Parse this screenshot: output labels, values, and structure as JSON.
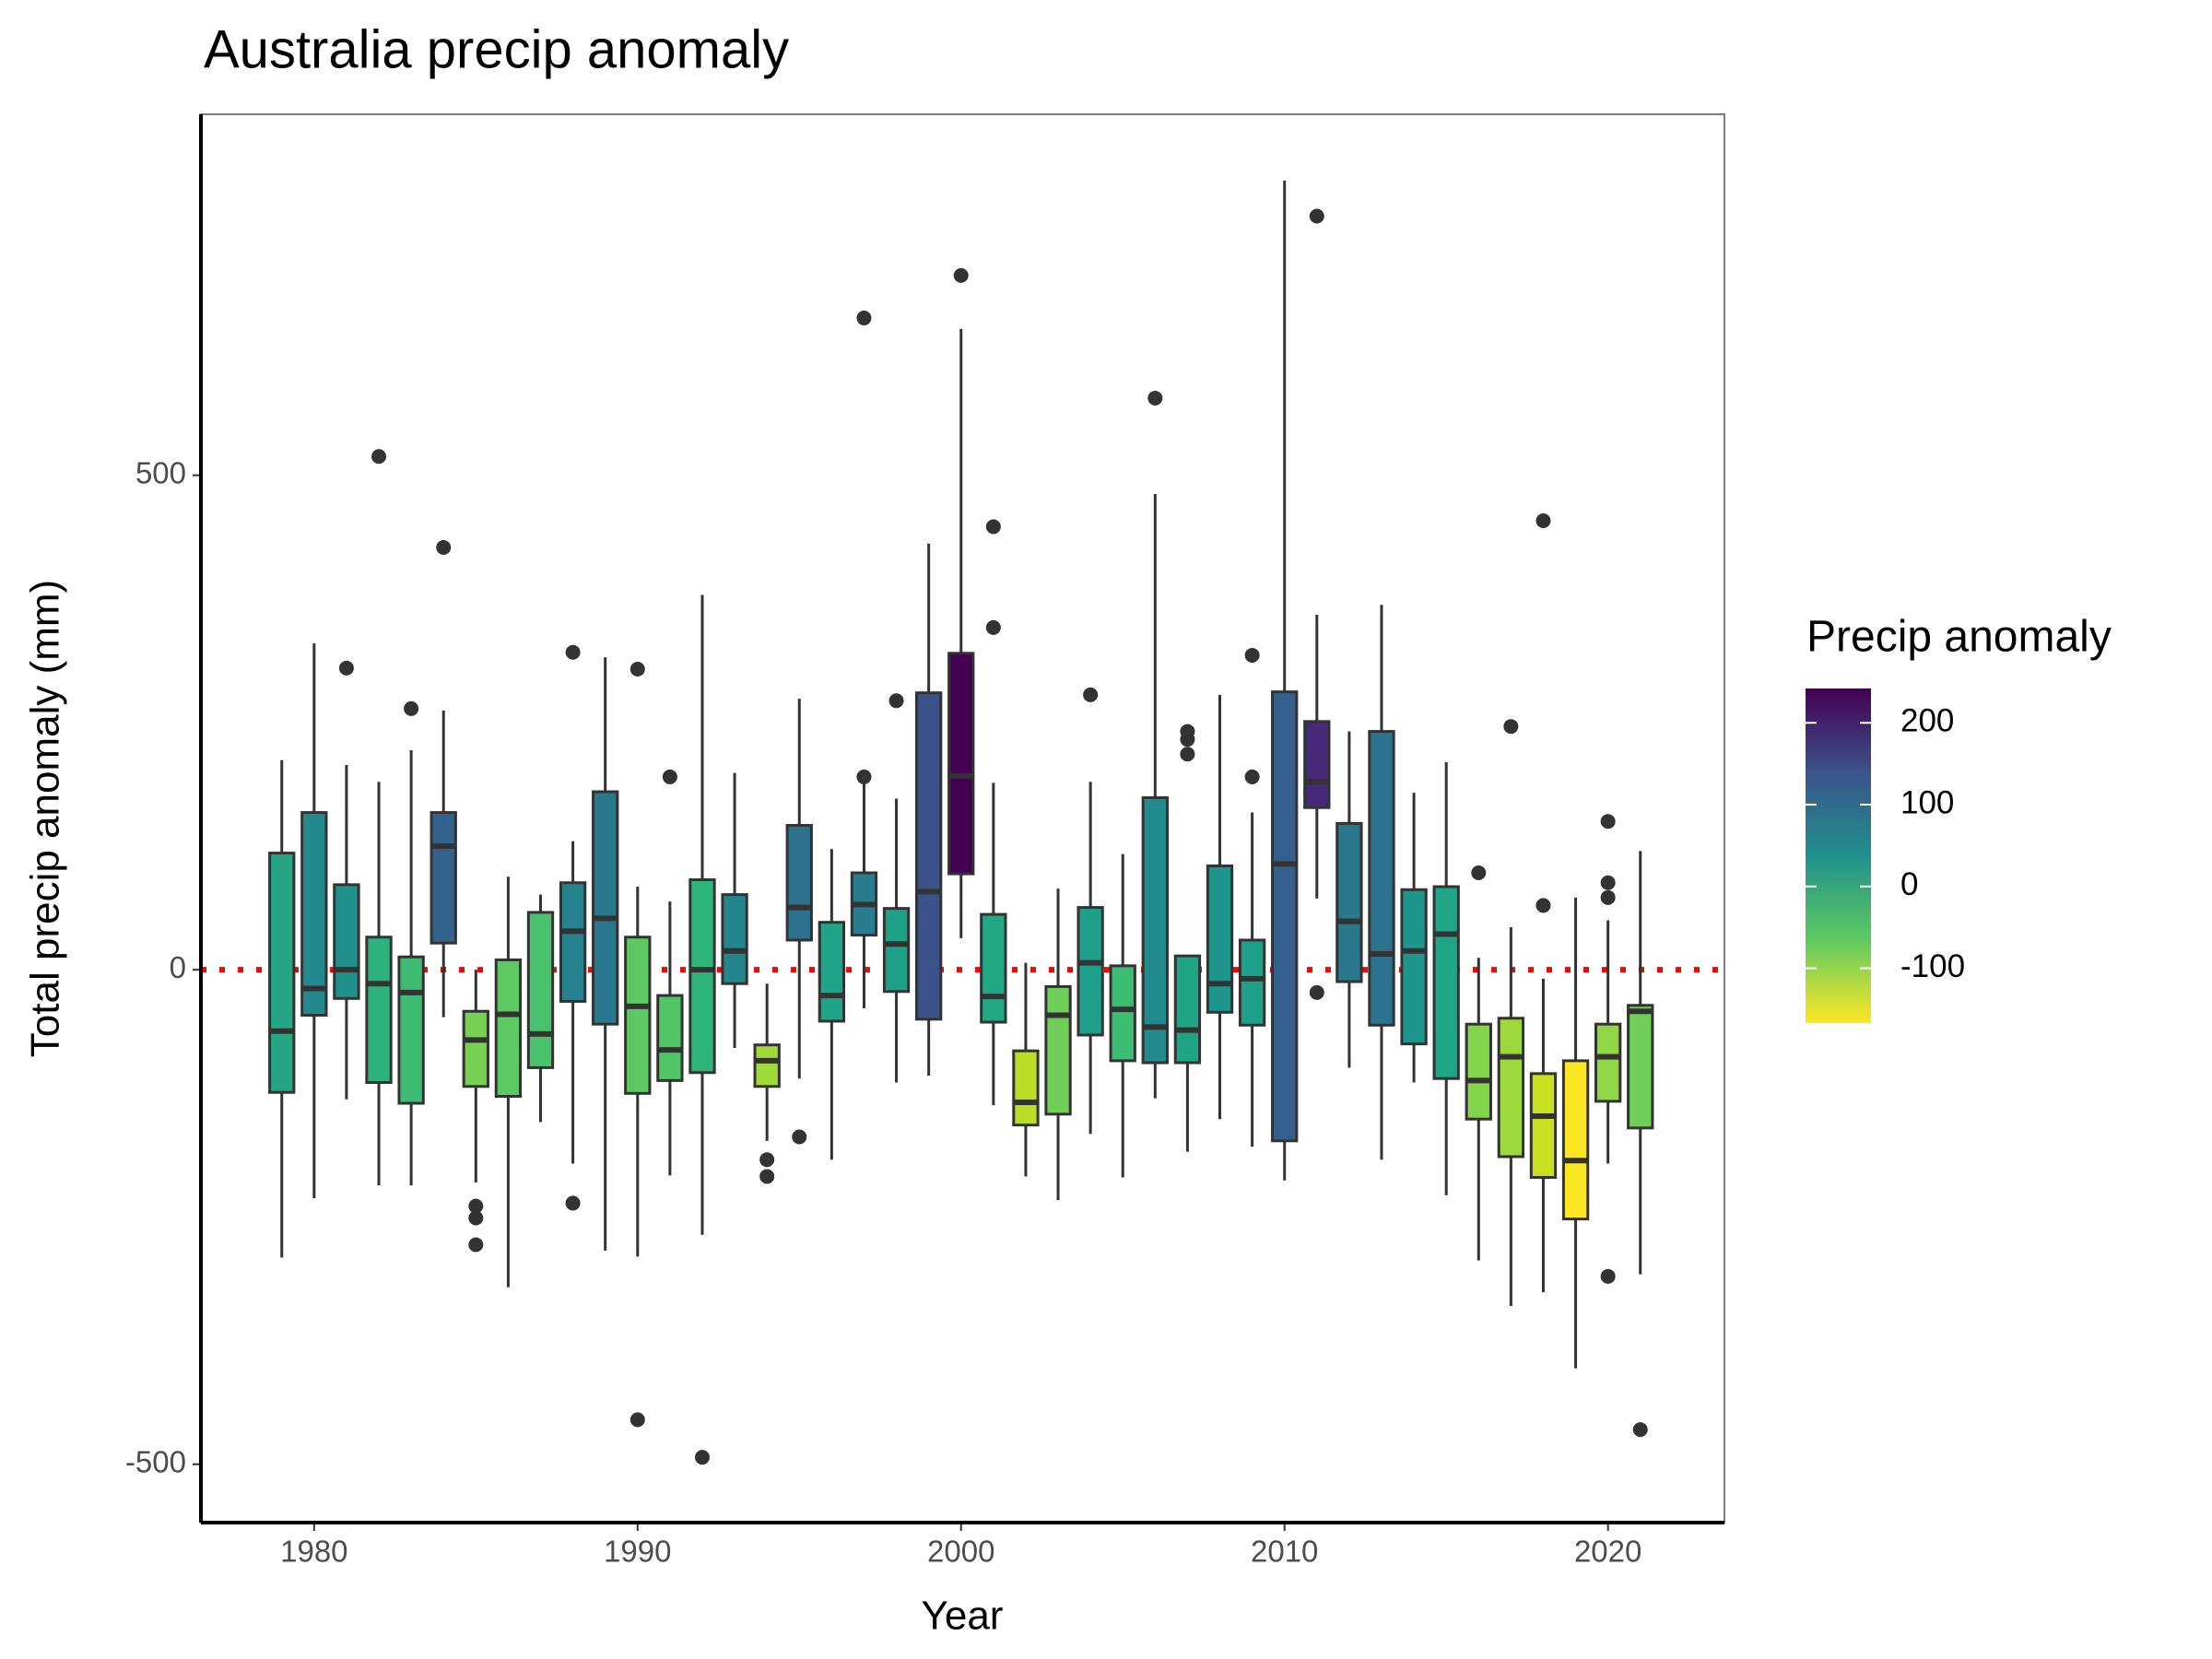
{
  "chart_data": {
    "type": "boxplot",
    "title": "Australia precip anomaly",
    "x_label": "Year",
    "y_label": "Total precip anomaly (mm)",
    "xlim": [
      1976.5,
      2023.6
    ],
    "xticks": [
      1980,
      1990,
      2000,
      2010,
      2020
    ],
    "ylim": [
      -559,
      865
    ],
    "yticks": [
      -500,
      0,
      500
    ],
    "hline": {
      "value": 0,
      "color": "#ff0000"
    },
    "legend": {
      "title": "Precip anomaly",
      "ticks": [
        -100,
        0,
        100,
        200
      ],
      "lim": [
        -167,
        242
      ],
      "colorscale": [
        "#fde725",
        "#5ec962",
        "#21918c",
        "#3b528b",
        "#440154"
      ]
    },
    "boxes": [
      {
        "x": 1979,
        "low": -291,
        "q1": -124,
        "median": -62,
        "q3": 118,
        "high": 212,
        "outliers": [],
        "color": "#25a584"
      },
      {
        "x": 1980,
        "low": -231,
        "q1": -46,
        "median": -19,
        "q3": 159,
        "high": 330,
        "outliers": [],
        "color": "#23898e"
      },
      {
        "x": 1981,
        "low": -131,
        "q1": -29,
        "median": 0,
        "q3": 86,
        "high": 207,
        "outliers": [
          305
        ],
        "color": "#21918c"
      },
      {
        "x": 1982,
        "low": -218,
        "q1": -114,
        "median": -14,
        "q3": 33,
        "high": 190,
        "outliers": [
          519
        ],
        "color": "#2db27d"
      },
      {
        "x": 1983,
        "low": -218,
        "q1": -135,
        "median": -23,
        "q3": 13,
        "high": 222,
        "outliers": [
          264
        ],
        "color": "#3fbc73"
      },
      {
        "x": 1984,
        "low": -48,
        "q1": 27,
        "median": 125,
        "q3": 159,
        "high": 262,
        "outliers": [
          427
        ],
        "color": "#33638d"
      },
      {
        "x": 1985,
        "low": -215,
        "q1": -118,
        "median": -71,
        "q3": -42,
        "high": 0,
        "outliers": [
          -239,
          -251,
          -278
        ],
        "color": "#75d054"
      },
      {
        "x": 1986,
        "low": -321,
        "q1": -128,
        "median": -45,
        "q3": 10,
        "high": 94,
        "outliers": [],
        "color": "#5ec962"
      },
      {
        "x": 1987,
        "low": -154,
        "q1": -99,
        "median": -65,
        "q3": 58,
        "high": 76,
        "outliers": [],
        "color": "#4ac16d"
      },
      {
        "x": 1988,
        "low": -196,
        "q1": -32,
        "median": 39,
        "q3": 88,
        "high": 130,
        "outliers": [
          321,
          -236
        ],
        "color": "#26828e"
      },
      {
        "x": 1989,
        "low": -284,
        "q1": -55,
        "median": 52,
        "q3": 180,
        "high": 316,
        "outliers": [],
        "color": "#2a788e"
      },
      {
        "x": 1990,
        "low": -290,
        "q1": -125,
        "median": -37,
        "q3": 33,
        "high": 84,
        "outliers": [
          304,
          -455
        ],
        "color": "#5ec962"
      },
      {
        "x": 1991,
        "low": -208,
        "q1": -112,
        "median": -81,
        "q3": -26,
        "high": 69,
        "outliers": [
          195
        ],
        "color": "#52c569"
      },
      {
        "x": 1992,
        "low": -268,
        "q1": -104,
        "median": 0,
        "q3": 91,
        "high": 379,
        "outliers": [
          -493
        ],
        "color": "#2fb47c"
      },
      {
        "x": 1993,
        "low": -79,
        "q1": -14,
        "median": 19,
        "q3": 76,
        "high": 199,
        "outliers": [],
        "color": "#25858e"
      },
      {
        "x": 1994,
        "low": -173,
        "q1": -118,
        "median": -92,
        "q3": -76,
        "high": -14,
        "outliers": [
          -192,
          -209
        ],
        "color": "#a0da39"
      },
      {
        "x": 1995,
        "low": -110,
        "q1": 30,
        "median": 63,
        "q3": 146,
        "high": 274,
        "outliers": [
          -169
        ],
        "color": "#2c728e"
      },
      {
        "x": 1996,
        "low": -192,
        "q1": -52,
        "median": -26,
        "q3": 48,
        "high": 122,
        "outliers": [],
        "color": "#20a386"
      },
      {
        "x": 1997,
        "low": -39,
        "q1": 35,
        "median": 66,
        "q3": 98,
        "high": 190,
        "outliers": [
          659,
          195
        ],
        "color": "#297b8e"
      },
      {
        "x": 1998,
        "low": -114,
        "q1": -22,
        "median": 26,
        "q3": 62,
        "high": 173,
        "outliers": [
          272
        ],
        "color": "#1fa188"
      },
      {
        "x": 1999,
        "low": -107,
        "q1": -50,
        "median": 79,
        "q3": 280,
        "high": 431,
        "outliers": [],
        "color": "#3b528b"
      },
      {
        "x": 2000,
        "low": 32,
        "q1": 97,
        "median": 196,
        "q3": 320,
        "high": 648,
        "outliers": [
          702
        ],
        "color": "#440154"
      },
      {
        "x": 2001,
        "low": -137,
        "q1": -53,
        "median": -27,
        "q3": 56,
        "high": 189,
        "outliers": [
          448,
          346
        ],
        "color": "#22a884"
      },
      {
        "x": 2002,
        "low": -209,
        "q1": -157,
        "median": -134,
        "q3": -82,
        "high": 7,
        "outliers": [],
        "color": "#bade28"
      },
      {
        "x": 2003,
        "low": -233,
        "q1": -146,
        "median": -46,
        "q3": -17,
        "high": 82,
        "outliers": [],
        "color": "#6ece58"
      },
      {
        "x": 2004,
        "low": -166,
        "q1": -66,
        "median": 7,
        "q3": 63,
        "high": 190,
        "outliers": [
          278
        ],
        "color": "#1f9e89"
      },
      {
        "x": 2005,
        "low": -210,
        "q1": -92,
        "median": -40,
        "q3": 4,
        "high": 117,
        "outliers": [],
        "color": "#3dbc74"
      },
      {
        "x": 2006,
        "low": -130,
        "q1": -94,
        "median": -58,
        "q3": 174,
        "high": 481,
        "outliers": [
          578
        ],
        "color": "#238a8d"
      },
      {
        "x": 2007,
        "low": -184,
        "q1": -94,
        "median": -61,
        "q3": 14,
        "high": 14,
        "outliers": [
          241,
          233,
          218
        ],
        "color": "#20a486"
      },
      {
        "x": 2008,
        "low": -151,
        "q1": -43,
        "median": -14,
        "q3": 105,
        "high": 278,
        "outliers": [],
        "color": "#1f968b"
      },
      {
        "x": 2009,
        "low": -179,
        "q1": -56,
        "median": -9,
        "q3": 30,
        "high": 159,
        "outliers": [
          318,
          195
        ],
        "color": "#1fa088"
      },
      {
        "x": 2010,
        "low": -213,
        "q1": -173,
        "median": 107,
        "q3": 281,
        "high": 798,
        "outliers": [],
        "color": "#355f8d"
      },
      {
        "x": 2011,
        "low": 72,
        "q1": 164,
        "median": 190,
        "q3": 251,
        "high": 359,
        "outliers": [
          762,
          -23
        ],
        "color": "#482878"
      },
      {
        "x": 2012,
        "low": -99,
        "q1": -12,
        "median": 49,
        "q3": 148,
        "high": 241,
        "outliers": [],
        "color": "#2a788e"
      },
      {
        "x": 2013,
        "low": -192,
        "q1": -56,
        "median": 16,
        "q3": 241,
        "high": 369,
        "outliers": [],
        "color": "#2c718e"
      },
      {
        "x": 2014,
        "low": -114,
        "q1": -75,
        "median": 19,
        "q3": 81,
        "high": 179,
        "outliers": [],
        "color": "#1f968b"
      },
      {
        "x": 2015,
        "low": -228,
        "q1": -110,
        "median": 36,
        "q3": 84,
        "high": 210,
        "outliers": [],
        "color": "#21a685"
      },
      {
        "x": 2016,
        "low": -294,
        "q1": -151,
        "median": -112,
        "q3": -55,
        "high": 12,
        "outliers": [
          98
        ],
        "color": "#84d44b"
      },
      {
        "x": 2017,
        "low": -340,
        "q1": -189,
        "median": -88,
        "q3": -49,
        "high": 43,
        "outliers": [
          246
        ],
        "color": "#9bd93c"
      },
      {
        "x": 2018,
        "low": -326,
        "q1": -210,
        "median": -148,
        "q3": -105,
        "high": -9,
        "outliers": [
          454,
          65
        ],
        "color": "#c8e020"
      },
      {
        "x": 2019,
        "low": -403,
        "q1": -252,
        "median": -193,
        "q3": -92,
        "high": 73,
        "outliers": [],
        "color": "#fde725"
      },
      {
        "x": 2020,
        "low": -196,
        "q1": -133,
        "median": -88,
        "q3": -55,
        "high": 50,
        "outliers": [
          150,
          88,
          73,
          -310
        ],
        "color": "#8fd744"
      },
      {
        "x": 2021,
        "low": -308,
        "q1": -160,
        "median": -42,
        "q3": -36,
        "high": 120,
        "outliers": [
          -465
        ],
        "color": "#6ece58"
      }
    ]
  }
}
